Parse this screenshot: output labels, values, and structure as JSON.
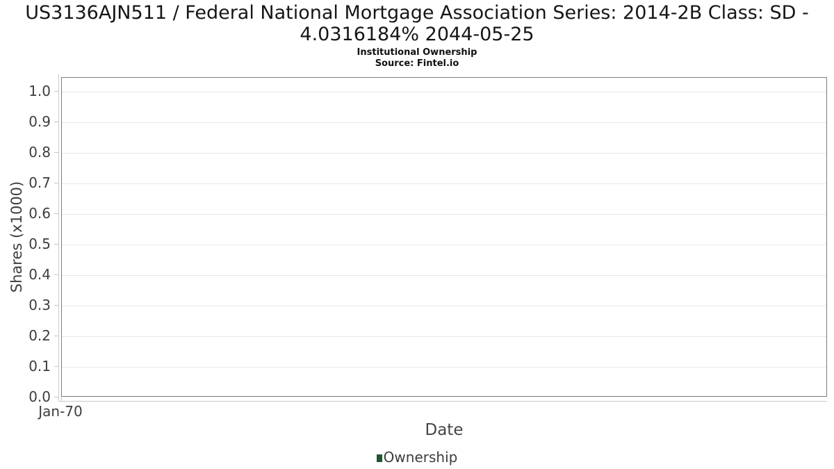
{
  "chart_data": {
    "type": "line",
    "title": "US3136AJN511 / Federal National Mortgage Association Series: 2014-2B Class: SD - 4.0316184% 2044-05-25",
    "subtitle": "Institutional Ownership",
    "source": "Source: Fintel.io",
    "xlabel": "Date",
    "ylabel": "Shares (x1000)",
    "x_ticks": [
      "Jan-70"
    ],
    "y_ticks": [
      "0.0",
      "0.1",
      "0.2",
      "0.3",
      "0.4",
      "0.5",
      "0.6",
      "0.7",
      "0.8",
      "0.9",
      "1.0"
    ],
    "ylim": [
      0.0,
      1.045
    ],
    "grid": true,
    "legend_position": "bottom-center",
    "legend": [
      {
        "label": "Ownership",
        "color": "#1e5631"
      }
    ],
    "series": [
      {
        "name": "Ownership",
        "x": [],
        "y": []
      }
    ]
  },
  "colors": {
    "background": "#ffffff",
    "plot_border": "#7c7c7c",
    "gridline": "#e8e8e8",
    "axis_line": "#c9c9c9",
    "tick_label": "#3d3d3d",
    "title_text": "#161616",
    "legend_swatch": "#1e5631"
  }
}
